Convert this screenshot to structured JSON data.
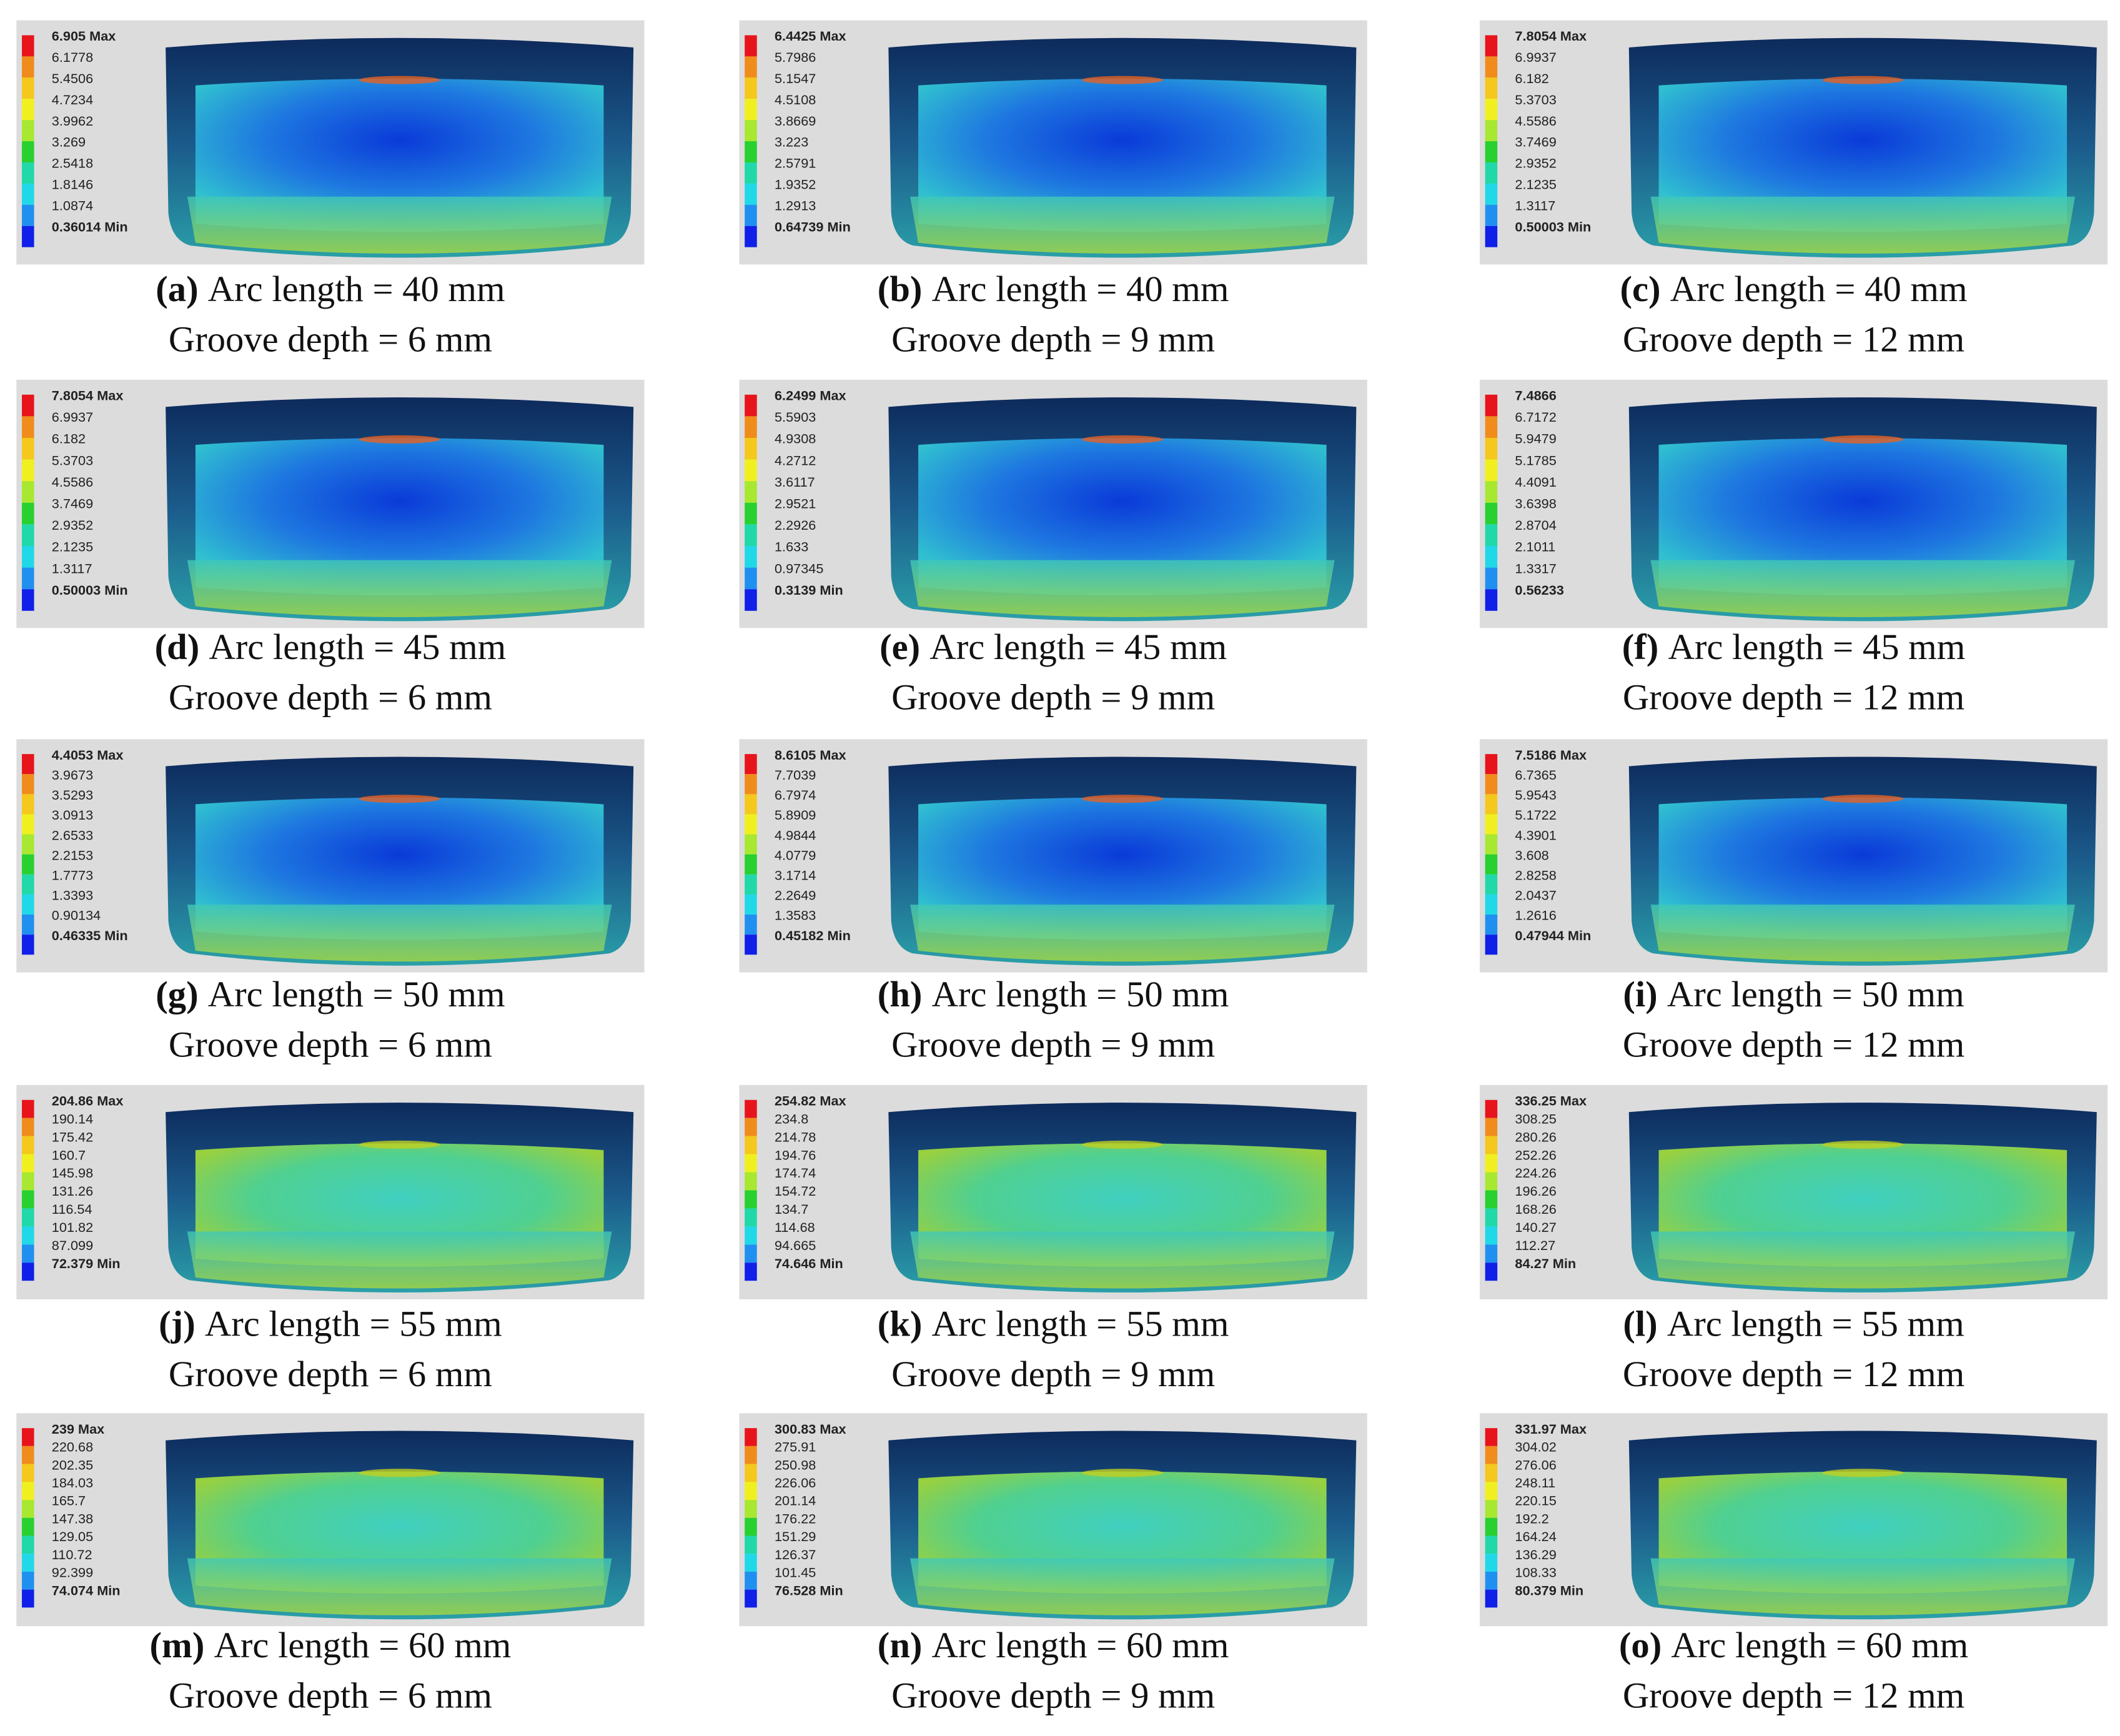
{
  "panels": [
    {
      "label": "(a)",
      "arc": "Arc length = 40 mm",
      "groove": "Groove depth = 6 mm",
      "legend": [
        "6.905 Max",
        "6.1778",
        "5.4506",
        "4.7234",
        "3.9962",
        "3.269",
        "2.5418",
        "1.8146",
        "1.0874",
        "0.36014 Min"
      ]
    },
    {
      "label": "(b)",
      "arc": "Arc length = 40 mm",
      "groove": "Groove depth = 9 mm",
      "legend": [
        "6.4425 Max",
        "5.7986",
        "5.1547",
        "4.5108",
        "3.8669",
        "3.223",
        "2.5791",
        "1.9352",
        "1.2913",
        "0.64739 Min"
      ]
    },
    {
      "label": "(c)",
      "arc": "Arc length = 40 mm",
      "groove": "Groove depth = 12 mm",
      "legend": [
        "7.8054 Max",
        "6.9937",
        "6.182",
        "5.3703",
        "4.5586",
        "3.7469",
        "2.9352",
        "2.1235",
        "1.3117",
        "0.50003 Min"
      ]
    },
    {
      "label": "(d)",
      "arc": "Arc length = 45 mm",
      "groove": "Groove depth = 6 mm",
      "legend": [
        "7.8054 Max",
        "6.9937",
        "6.182",
        "5.3703",
        "4.5586",
        "3.7469",
        "2.9352",
        "2.1235",
        "1.3117",
        "0.50003 Min"
      ]
    },
    {
      "label": "(e)",
      "arc": "Arc length = 45 mm",
      "groove": "Groove depth = 9 mm",
      "legend": [
        "6.2499 Max",
        "5.5903",
        "4.9308",
        "4.2712",
        "3.6117",
        "2.9521",
        "2.2926",
        "1.633",
        "0.97345",
        "0.3139 Min"
      ]
    },
    {
      "label": "(f)",
      "arc": "Arc length = 45 mm",
      "groove": "Groove depth = 12 mm",
      "legend": [
        "7.4866",
        "6.7172",
        "5.9479",
        "5.1785",
        "4.4091",
        "3.6398",
        "2.8704",
        "2.1011",
        "1.3317",
        "0.56233"
      ]
    },
    {
      "label": "(g)",
      "arc": "Arc length = 50 mm",
      "groove": "Groove depth = 6 mm",
      "legend": [
        "4.4053 Max",
        "3.9673",
        "3.5293",
        "3.0913",
        "2.6533",
        "2.2153",
        "1.7773",
        "1.3393",
        "0.90134",
        "0.46335 Min"
      ]
    },
    {
      "label": "(h)",
      "arc": "Arc length = 50 mm",
      "groove": "Groove depth = 9 mm",
      "legend": [
        "8.6105 Max",
        "7.7039",
        "6.7974",
        "5.8909",
        "4.9844",
        "4.0779",
        "3.1714",
        "2.2649",
        "1.3583",
        "0.45182 Min"
      ]
    },
    {
      "label": "(i)",
      "arc": "Arc length = 50 mm",
      "groove": "Groove depth = 12 mm",
      "legend": [
        "7.5186 Max",
        "6.7365",
        "5.9543",
        "5.1722",
        "4.3901",
        "3.608",
        "2.8258",
        "2.0437",
        "1.2616",
        "0.47944 Min"
      ]
    },
    {
      "label": "(j)",
      "arc": "Arc length = 55 mm",
      "groove": "Groove depth = 6 mm",
      "legend": [
        "204.86 Max",
        "190.14",
        "175.42",
        "160.7",
        "145.98",
        "131.26",
        "116.54",
        "101.82",
        "87.099",
        "72.379 Min"
      ]
    },
    {
      "label": "(k)",
      "arc": "Arc length = 55 mm",
      "groove": "Groove depth = 9 mm",
      "legend": [
        "254.82 Max",
        "234.8",
        "214.78",
        "194.76",
        "174.74",
        "154.72",
        "134.7",
        "114.68",
        "94.665",
        "74.646 Min"
      ]
    },
    {
      "label": "(l)",
      "arc": "Arc length = 55 mm",
      "groove": "Groove depth = 12 mm",
      "legend": [
        "336.25 Max",
        "308.25",
        "280.26",
        "252.26",
        "224.26",
        "196.26",
        "168.26",
        "140.27",
        "112.27",
        "84.27 Min"
      ]
    },
    {
      "label": "(m)",
      "arc": "Arc length = 60 mm",
      "groove": "Groove depth = 6 mm",
      "legend": [
        "239 Max",
        "220.68",
        "202.35",
        "184.03",
        "165.7",
        "147.38",
        "129.05",
        "110.72",
        "92.399",
        "74.074 Min"
      ]
    },
    {
      "label": "(n)",
      "arc": "Arc length = 60 mm",
      "groove": "Groove depth = 9 mm",
      "legend": [
        "300.83 Max",
        "275.91",
        "250.98",
        "226.06",
        "201.14",
        "176.22",
        "151.29",
        "126.37",
        "101.45",
        "76.528 Min"
      ]
    },
    {
      "label": "(o)",
      "arc": "Arc length = 60 mm",
      "groove": "Groove depth = 12 mm",
      "legend": [
        "331.97 Max",
        "304.02",
        "276.06",
        "248.11",
        "220.15",
        "192.2",
        "164.24",
        "136.29",
        "108.33",
        "80.379 Min"
      ]
    }
  ]
}
